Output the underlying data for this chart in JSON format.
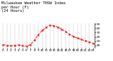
{
  "title": "Milwaukee Weather THSW Index\nper Hour (F)\n(24 Hours)",
  "hours": [
    0,
    1,
    2,
    3,
    4,
    5,
    6,
    7,
    8,
    9,
    10,
    11,
    12,
    13,
    14,
    15,
    16,
    17,
    18,
    19,
    20,
    21,
    22,
    23
  ],
  "values": [
    42,
    40,
    39,
    40,
    41,
    39,
    38,
    42,
    52,
    65,
    75,
    82,
    87,
    86,
    83,
    78,
    72,
    66,
    61,
    57,
    54,
    51,
    48,
    45
  ],
  "line_color": "#ff0000",
  "marker": "s",
  "marker_size": 1.2,
  "line_style": "--",
  "line_width": 0.7,
  "ylim": [
    35,
    92
  ],
  "yticks": [
    40,
    50,
    60,
    70,
    80,
    90
  ],
  "grid_color": "#888888",
  "bg_color": "#ffffff",
  "title_fontsize": 4.0,
  "tick_fontsize": 3.2
}
